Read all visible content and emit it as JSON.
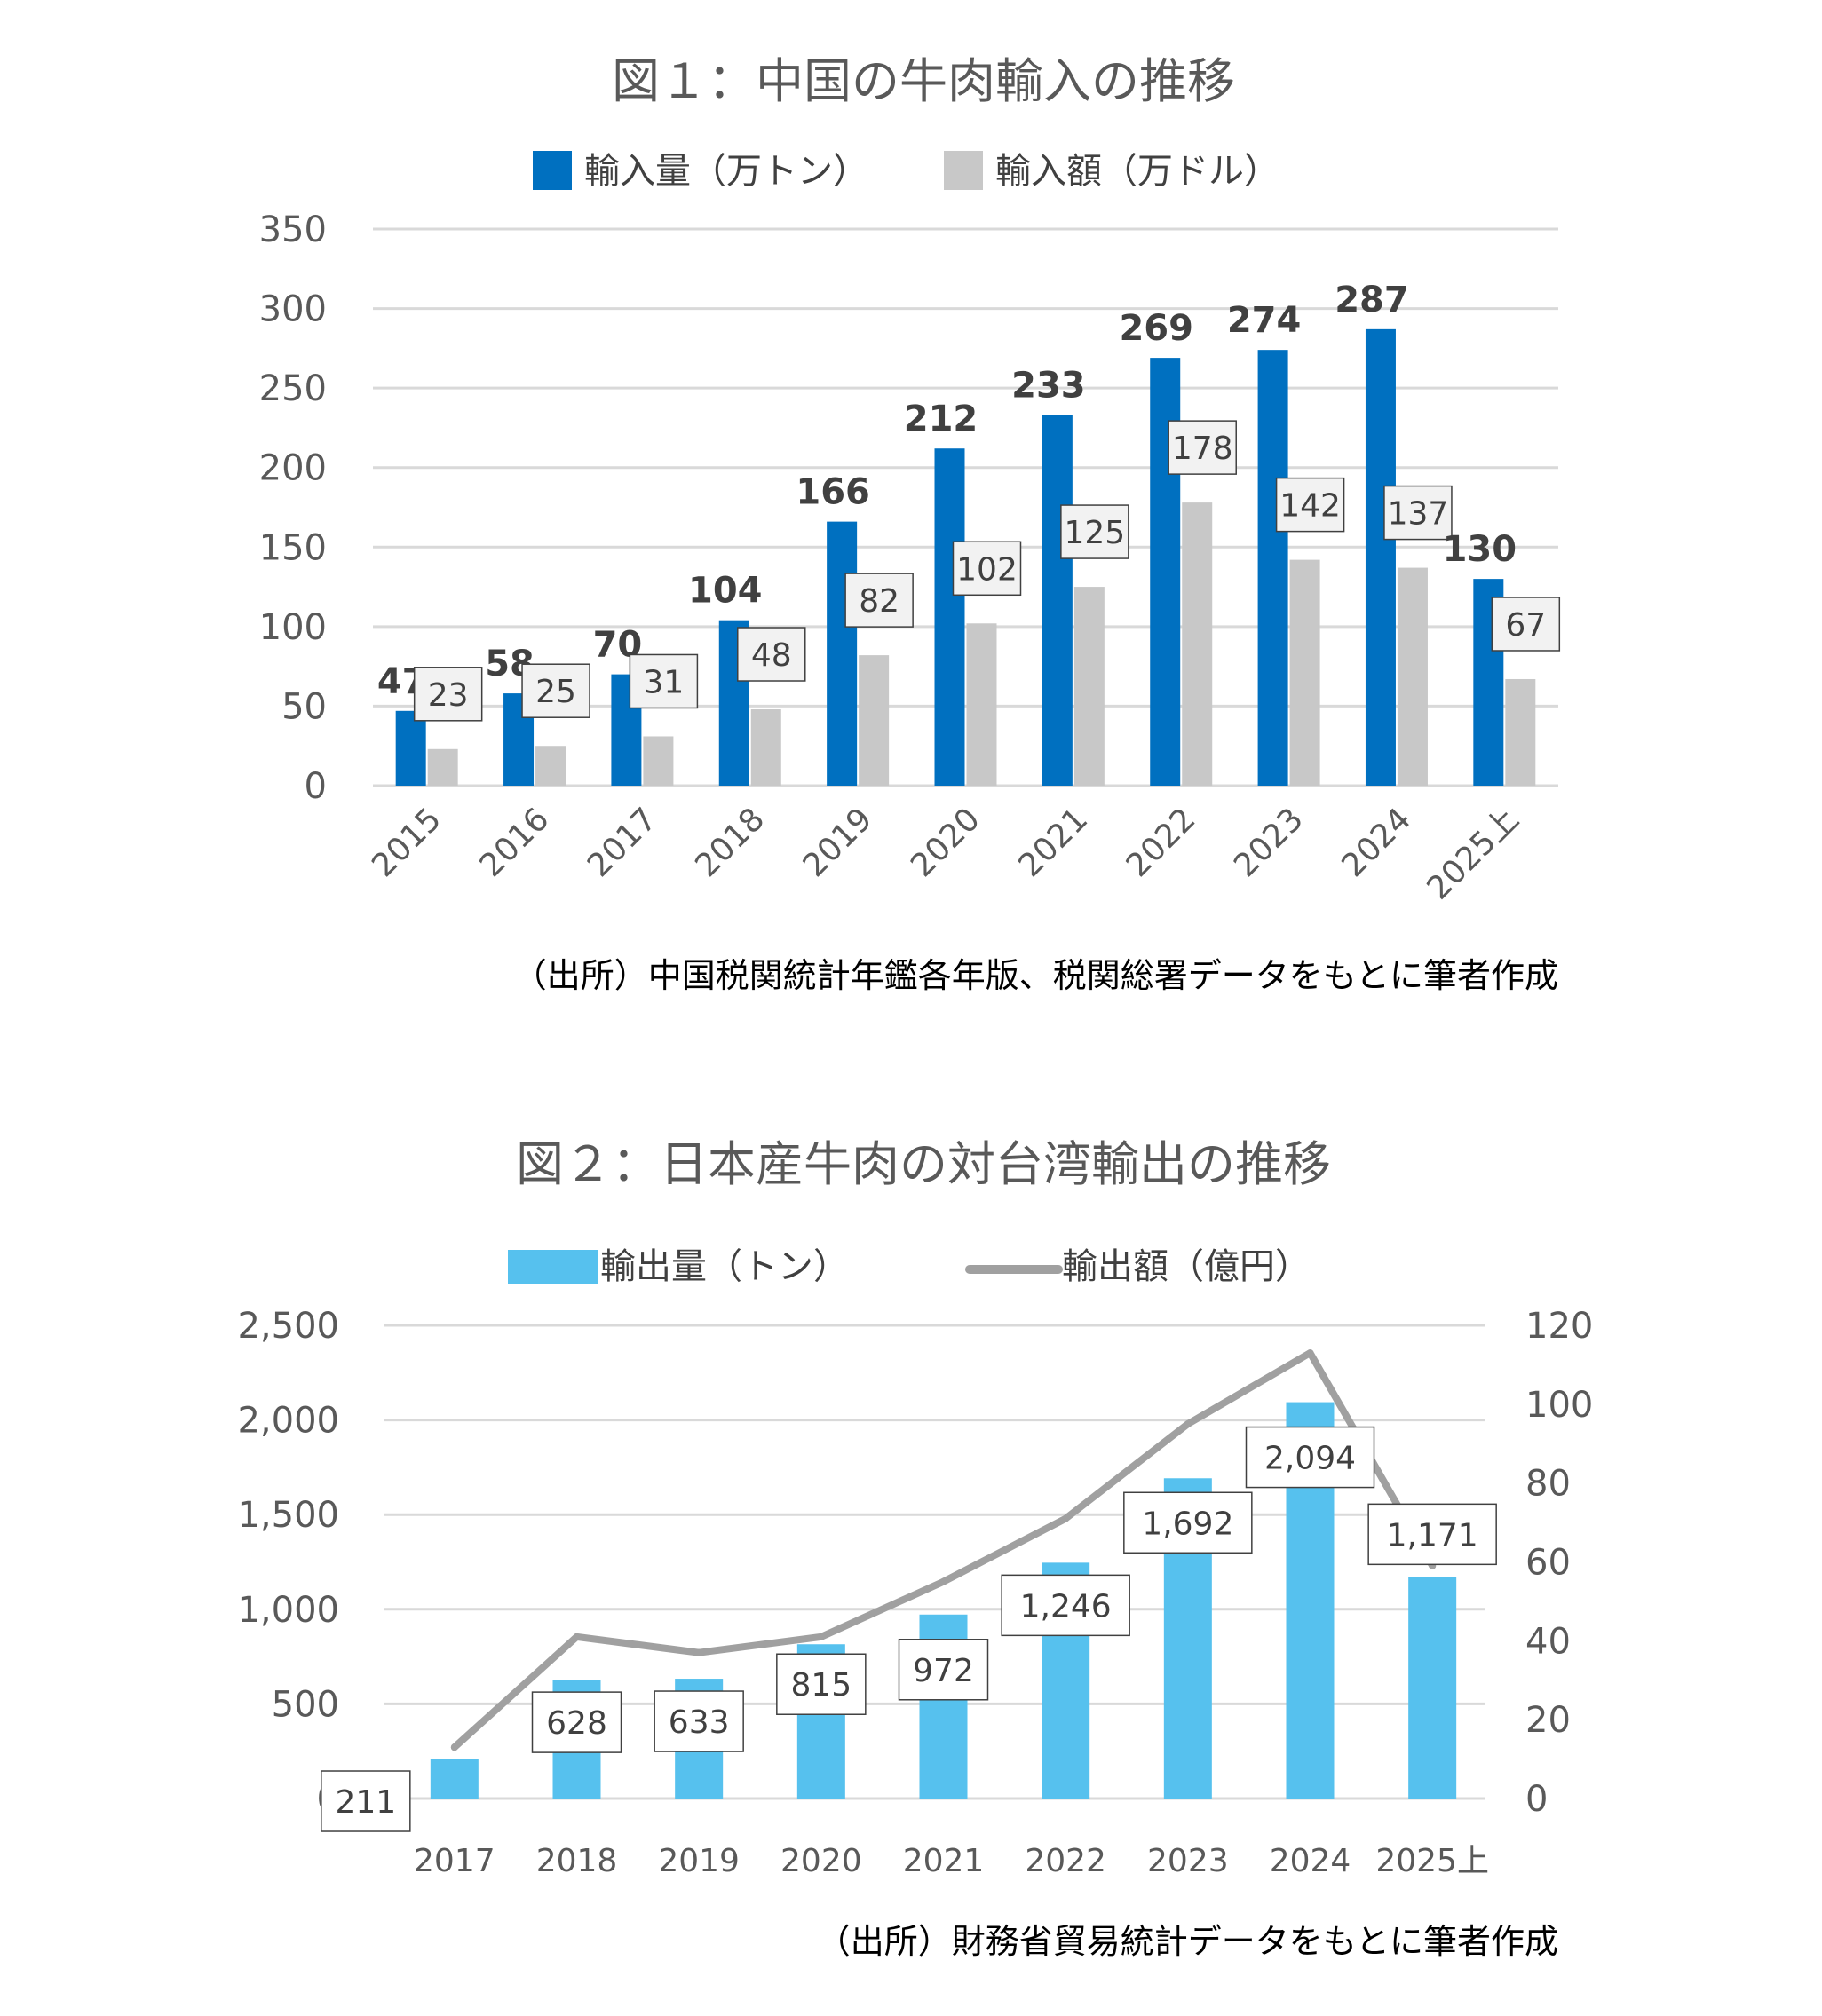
{
  "chart_data": [
    {
      "type": "bar",
      "title": "図１：中国の牛肉輸入の推移",
      "categories": [
        "2015",
        "2016",
        "2017",
        "2018",
        "2019",
        "2020",
        "2021",
        "2022",
        "2023",
        "2024",
        "2025上"
      ],
      "series": [
        {
          "name": "輸入量（万トン）",
          "color": "#0070c0",
          "values": [
            47,
            58,
            70,
            104,
            166,
            212,
            233,
            269,
            274,
            287,
            130
          ]
        },
        {
          "name": "輸入額（万ドル）",
          "color": "#c8c8c8",
          "values": [
            23,
            25,
            31,
            48,
            82,
            102,
            125,
            178,
            142,
            137,
            67
          ]
        }
      ],
      "yticks": [
        "0",
        "50",
        "100",
        "150",
        "200",
        "250",
        "300",
        "350"
      ],
      "ylim": [
        0,
        350
      ],
      "grid": true,
      "legend": "top",
      "source": "（出所）中国税関統計年鑑各年版、税関総署データをもとに筆者作成"
    },
    {
      "type": "bar+line",
      "title": "図２：日本産牛肉の対台湾輸出の推移",
      "categories": [
        "2017",
        "2018",
        "2019",
        "2020",
        "2021",
        "2022",
        "2023",
        "2024",
        "2025上"
      ],
      "series": [
        {
          "name": "輸出量（トン）",
          "type": "bar",
          "axis": "left",
          "color": "#56c1ee",
          "values": [
            211,
            628,
            633,
            815,
            972,
            1246,
            1692,
            2094,
            1171
          ],
          "labels": [
            "211",
            "628",
            "633",
            "815",
            "972",
            "1,246",
            "1,692",
            "2,094",
            "1,171"
          ]
        },
        {
          "name": "輸出額（億円）",
          "type": "line",
          "axis": "right",
          "color": "#a0a0a0",
          "values": [
            13,
            41,
            37,
            41,
            55,
            71,
            95,
            113,
            59
          ]
        }
      ],
      "yticks_left": [
        "0",
        "500",
        "1,000",
        "1,500",
        "2,000",
        "2,500"
      ],
      "ylim_left": [
        0,
        2500
      ],
      "yticks_right": [
        "0",
        "20",
        "40",
        "60",
        "80",
        "100",
        "120"
      ],
      "ylim_right": [
        0,
        120
      ],
      "grid": true,
      "legend": "top",
      "source": "（出所）財務省貿易統計データをもとに筆者作成"
    }
  ]
}
